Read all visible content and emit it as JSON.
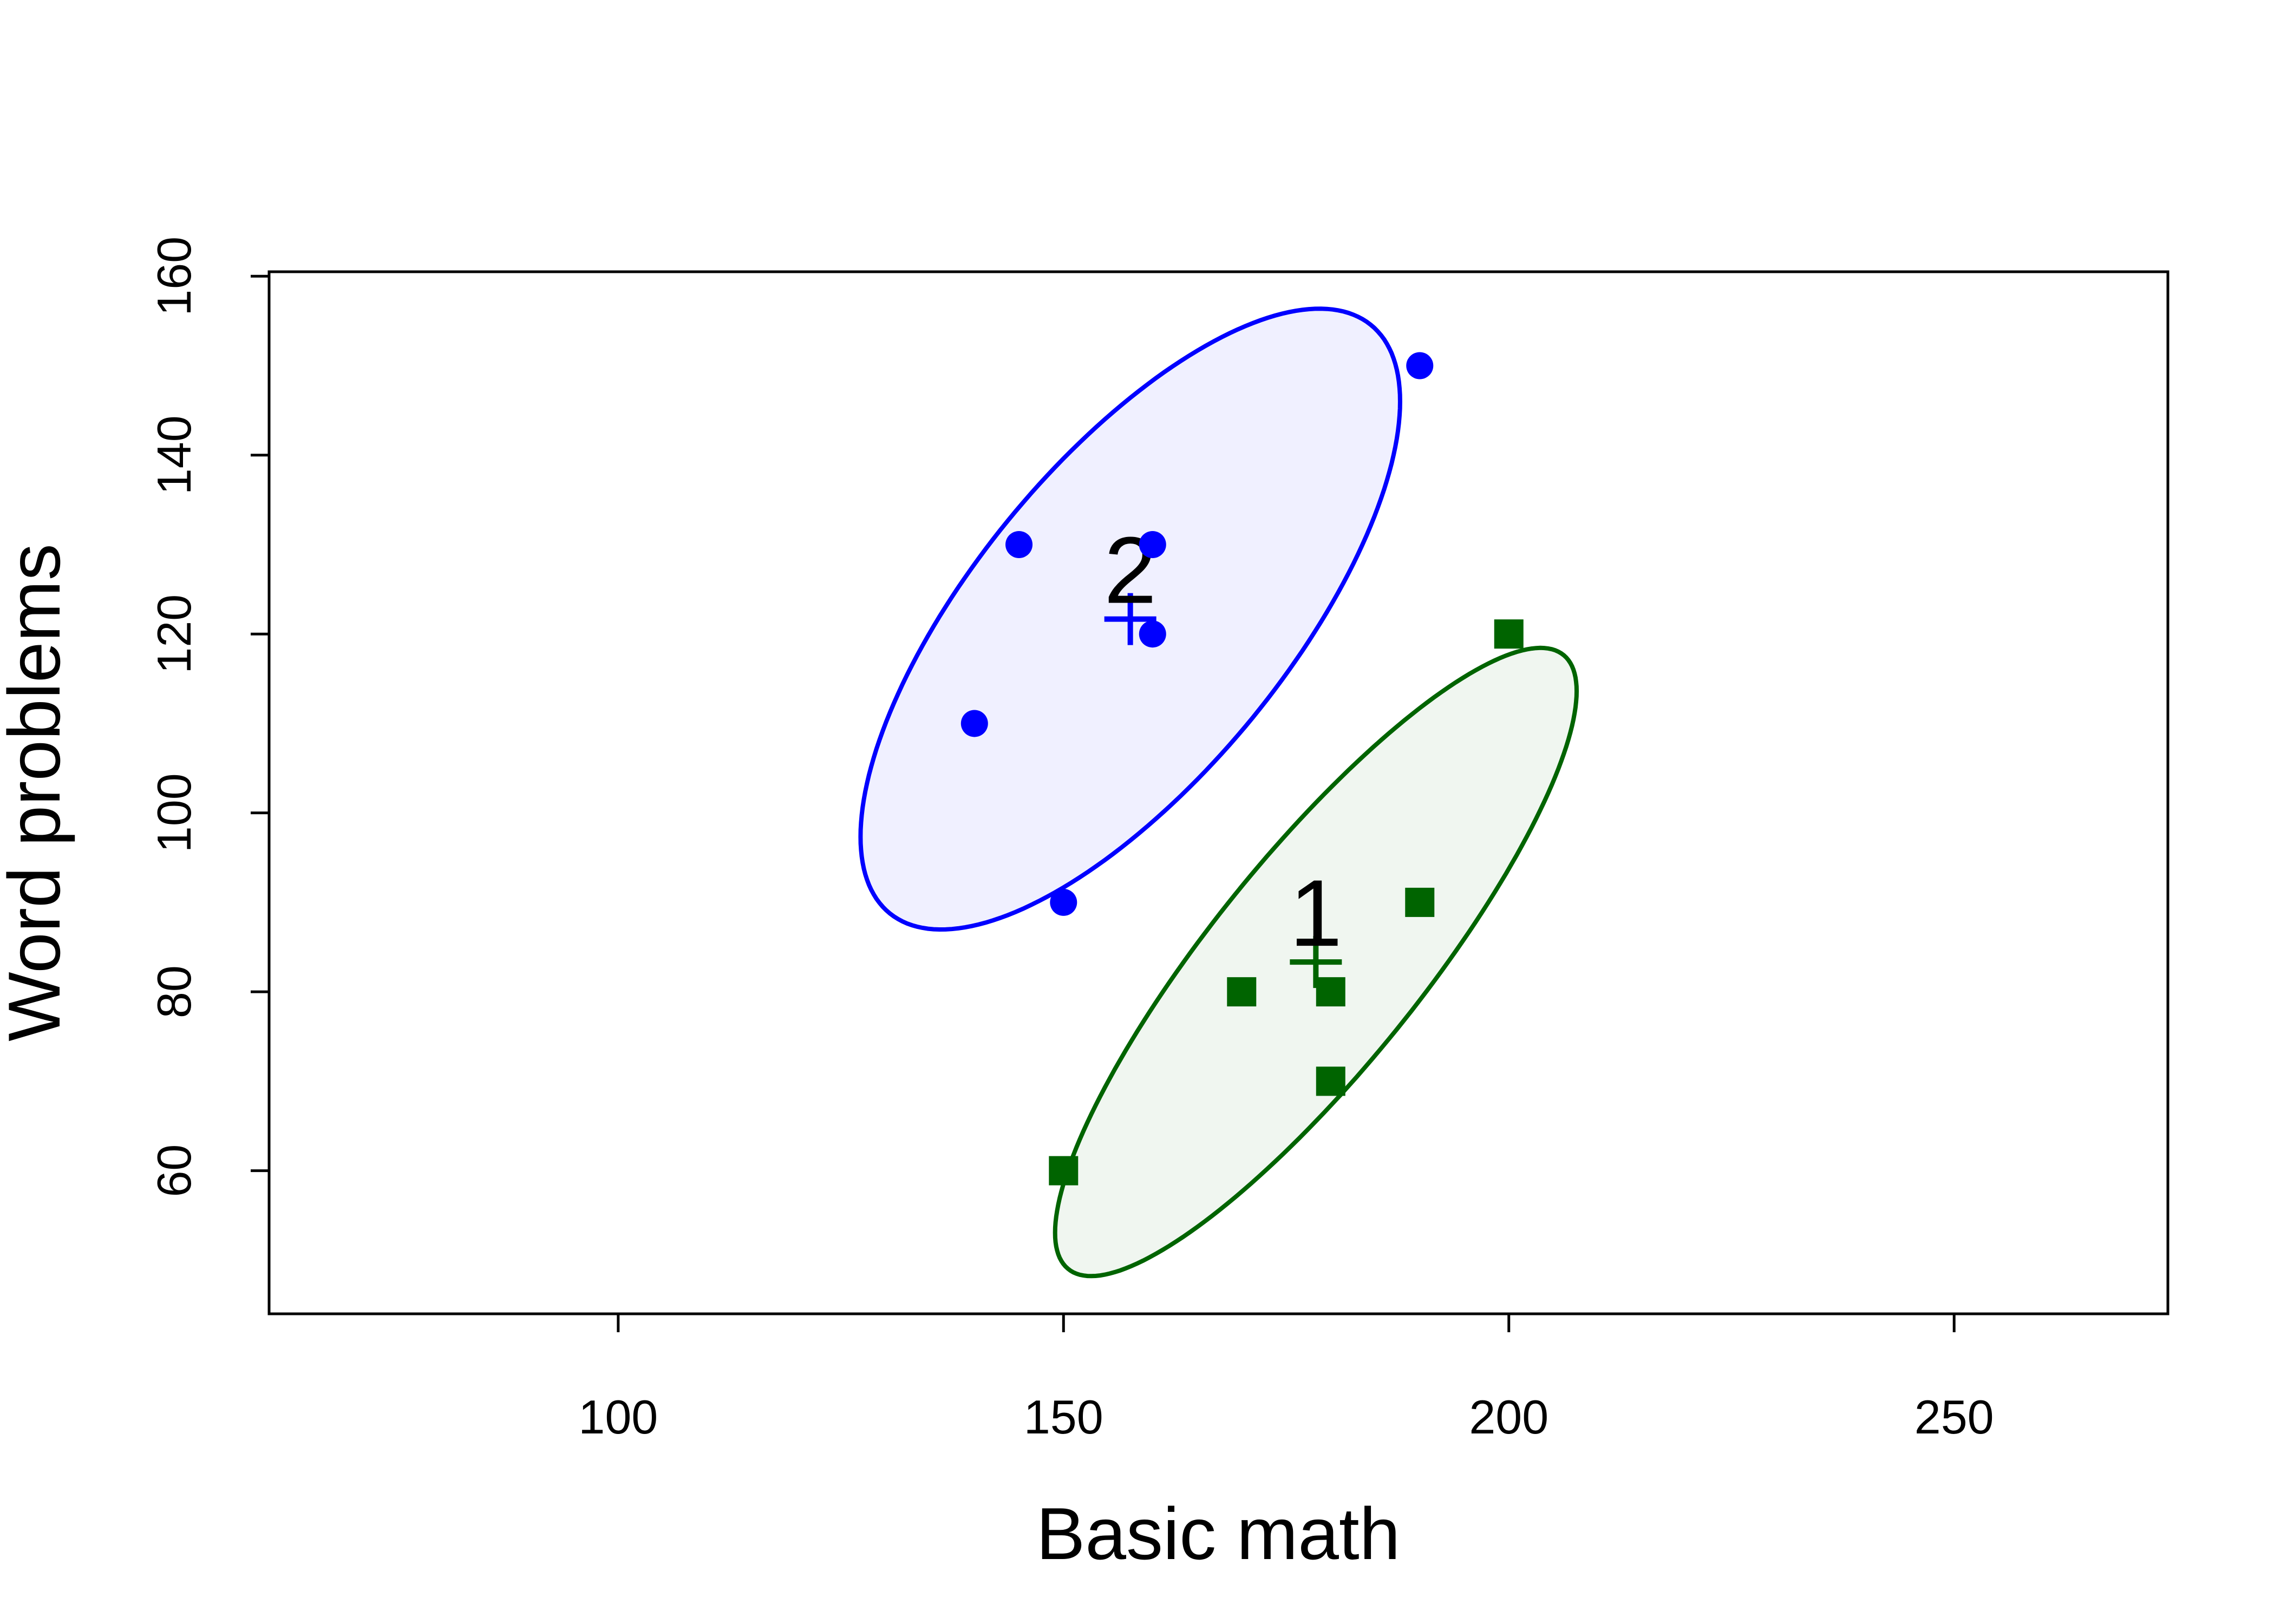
{
  "chart_data": {
    "type": "scatter",
    "xlabel": "Basic math",
    "ylabel": "Word problems",
    "xlim": [
      60.8,
      274
    ],
    "ylim": [
      44,
      160.5
    ],
    "xticks": [
      100,
      150,
      200,
      250
    ],
    "yticks": [
      60,
      80,
      100,
      120,
      140,
      160
    ],
    "series": [
      {
        "name": "1",
        "color": "#006400",
        "marker": "square",
        "x": [
          150,
          170,
          180,
          180,
          190,
          200
        ],
        "values": [
          60,
          80,
          80,
          70,
          90,
          120
        ]
      },
      {
        "name": "2",
        "color": "#0000ff",
        "marker": "circle",
        "x": [
          140,
          145,
          150,
          160,
          160,
          190
        ],
        "values": [
          110,
          130,
          90,
          130,
          120,
          150
        ]
      }
    ]
  }
}
